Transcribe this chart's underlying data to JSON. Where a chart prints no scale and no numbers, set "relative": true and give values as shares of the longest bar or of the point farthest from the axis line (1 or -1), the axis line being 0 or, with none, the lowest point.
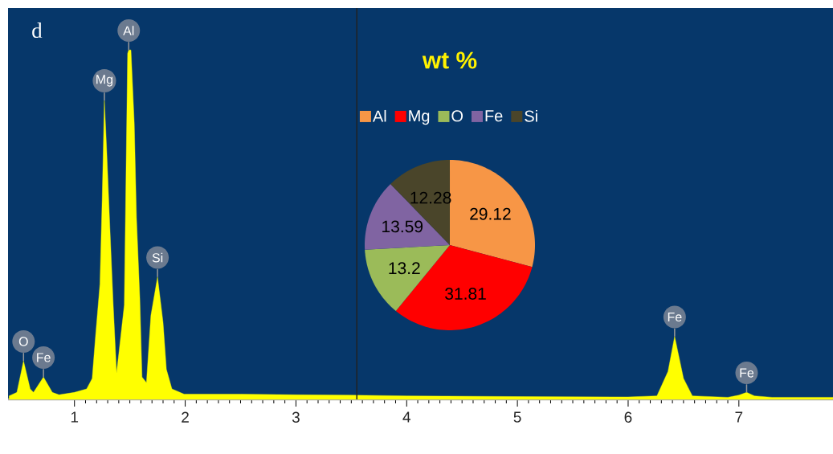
{
  "chart_data": [
    {
      "type": "area",
      "title": "d",
      "relative": true,
      "color": "#ffff00",
      "x": [
        0.41,
        0.48,
        0.54,
        0.6,
        0.63,
        0.72,
        0.8,
        0.86,
        1.0,
        1.11,
        1.16,
        1.19,
        1.23,
        1.25,
        1.27,
        1.29,
        1.32,
        1.35,
        1.38,
        1.4,
        1.45,
        1.46,
        1.48,
        1.49,
        1.51,
        1.54,
        1.56,
        1.59,
        1.61,
        1.65,
        1.69,
        1.75,
        1.8,
        1.83,
        1.88,
        1.99,
        2.5,
        3.0,
        3.5,
        4.0,
        5.0,
        6.0,
        6.26,
        6.36,
        6.42,
        6.5,
        6.58,
        6.9,
        7.0,
        7.07,
        7.14,
        7.3,
        7.85
      ],
      "values": [
        0.01,
        0.02,
        0.11,
        0.03,
        0.02,
        0.064,
        0.02,
        0.013,
        0.02,
        0.03,
        0.06,
        0.18,
        0.33,
        0.57,
        0.855,
        0.72,
        0.49,
        0.27,
        0.075,
        0.13,
        0.27,
        0.51,
        0.99,
        1.0,
        1.0,
        0.79,
        0.52,
        0.29,
        0.064,
        0.048,
        0.24,
        0.35,
        0.22,
        0.086,
        0.03,
        0.015,
        0.015,
        0.013,
        0.012,
        0.01,
        0.008,
        0.007,
        0.01,
        0.08,
        0.18,
        0.06,
        0.01,
        0.006,
        0.012,
        0.02,
        0.01,
        0.006,
        0.006
      ],
      "xlim": [
        0.4,
        7.85
      ],
      "xticks": [
        1,
        2,
        3,
        4,
        5,
        6,
        7
      ],
      "ref_lines": [
        {
          "axis": "x",
          "value": 3.55,
          "color": "#222222"
        }
      ],
      "annotations": [
        {
          "text": "O",
          "x": 0.54,
          "y": 0.11
        },
        {
          "text": "Fe",
          "x": 0.72,
          "y": 0.064
        },
        {
          "text": "Mg",
          "x": 1.27,
          "y": 0.855
        },
        {
          "text": "Al",
          "x": 1.49,
          "y": 1.0
        },
        {
          "text": "Si",
          "x": 1.75,
          "y": 0.35
        },
        {
          "text": "Fe",
          "x": 6.42,
          "y": 0.18
        },
        {
          "text": "Fe",
          "x": 7.07,
          "y": 0.02
        }
      ]
    },
    {
      "type": "pie",
      "title": "wt %",
      "categories": [
        "Al",
        "Mg",
        "O",
        "Fe",
        "Si"
      ],
      "values": [
        29.12,
        31.81,
        13.2,
        13.59,
        12.28
      ],
      "colors": [
        "#f79646",
        "#ff0000",
        "#9bbb59",
        "#8064a2",
        "#4a452a"
      ],
      "legend": "top",
      "data_labels": true
    }
  ]
}
